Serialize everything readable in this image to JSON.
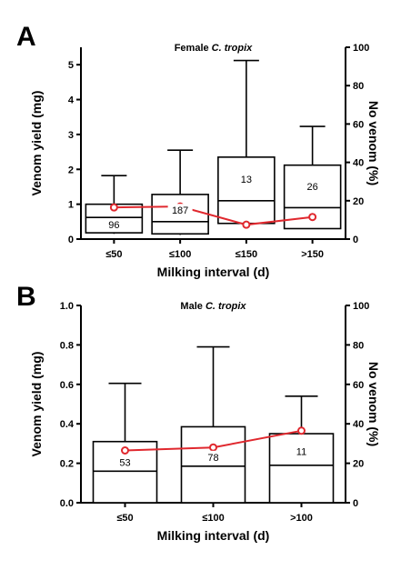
{
  "chart_data": [
    {
      "type": "box",
      "panel": "A",
      "title_prefix": "Female ",
      "title_species": "C. tropix",
      "xlabel": "Milking interval (d)",
      "ylabel": "Venom yield (mg)",
      "y2label": "No venom (%)",
      "categories": [
        "≤50",
        "≤100",
        "≤150",
        ">150"
      ],
      "ylim": [
        0,
        5.5
      ],
      "y_ticks": [
        "0",
        "1",
        "2",
        "3",
        "4",
        "5"
      ],
      "y2lim": [
        0,
        100
      ],
      "y2_ticks": [
        "0",
        "20",
        "40",
        "60",
        "80",
        "100"
      ],
      "boxes": [
        {
          "min": 0.15,
          "q1": 0.18,
          "median": 0.62,
          "q3": 1.0,
          "max": 1.82,
          "n": "96"
        },
        {
          "min": 0.12,
          "q1": 0.15,
          "median": 0.5,
          "q3": 1.28,
          "max": 2.55,
          "n": "187"
        },
        {
          "min": 0.45,
          "q1": 0.45,
          "median": 1.1,
          "q3": 2.35,
          "max": 5.12,
          "n": "13"
        },
        {
          "min": 0.3,
          "q1": 0.3,
          "median": 0.9,
          "q3": 2.12,
          "max": 3.23,
          "n": "26"
        }
      ],
      "no_venom_pct": [
        16.5,
        17.0,
        7.5,
        11.5
      ],
      "line_color": "#e0282e"
    },
    {
      "type": "box",
      "panel": "B",
      "title_prefix": "Male ",
      "title_species": "C. tropix",
      "xlabel": "Milking interval (d)",
      "ylabel": "Venom yield (mg)",
      "y2label": "No venom (%)",
      "categories": [
        "≤50",
        "≤100",
        ">100"
      ],
      "ylim": [
        0,
        1.0
      ],
      "y_ticks": [
        "0.0",
        "0.2",
        "0.4",
        "0.6",
        "0.8",
        "1.0"
      ],
      "y2lim": [
        0,
        100
      ],
      "y2_ticks": [
        "0",
        "20",
        "40",
        "60",
        "80",
        "100"
      ],
      "boxes": [
        {
          "min": 0.0,
          "q1": 0.0,
          "median": 0.16,
          "q3": 0.31,
          "max": 0.605,
          "n": "53"
        },
        {
          "min": 0.0,
          "q1": 0.0,
          "median": 0.185,
          "q3": 0.385,
          "max": 0.79,
          "n": "78"
        },
        {
          "min": 0.0,
          "q1": 0.0,
          "median": 0.19,
          "q3": 0.35,
          "max": 0.54,
          "n": "11"
        }
      ],
      "no_venom_pct": [
        26.5,
        28.0,
        36.5
      ],
      "line_color": "#e0282e"
    }
  ]
}
